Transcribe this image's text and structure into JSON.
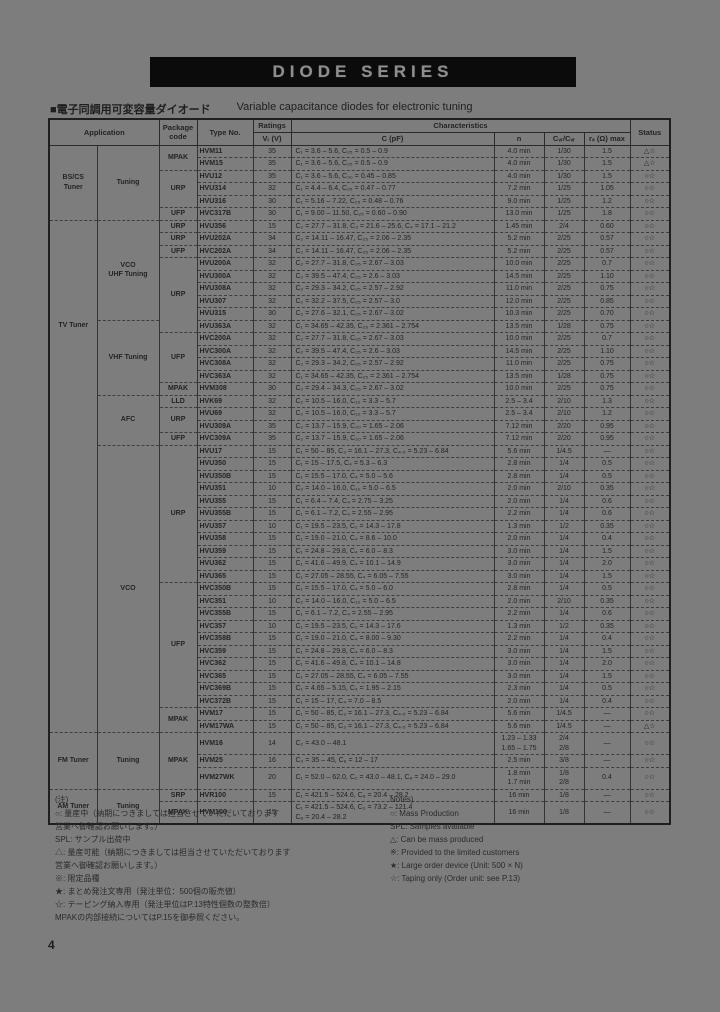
{
  "banner": {
    "title": "DIODE  SERIES"
  },
  "heading": {
    "jp": "■電子同調用可変容量ダイオード",
    "en": "Variable capacitance diodes for electronic tuning"
  },
  "table": {
    "header": {
      "application": "Application",
      "package": "Package\ncode",
      "type_no": "Type No.",
      "ratings": "Ratings",
      "vr": "Vᵣ (V)",
      "characteristics": "Characteristics",
      "c": "C (pF)",
      "n": "n",
      "cvr": "Cᵥᵣ/Cᵥᵣ",
      "rs": "rₛ (Ω) max",
      "status": "Status"
    },
    "rows": [
      [
        {
          "t": "BS/CS\nTuner",
          "s": 6
        },
        {
          "t": "Tuning",
          "s": 6
        },
        {
          "t": "MPAK",
          "s": 2
        },
        "HVM11",
        "35",
        "C₁ = 3.6 – 5.6, C₂₅ = 0.5 – 0.9",
        "4.0 min",
        "1/30",
        "1.5",
        "△☆"
      ],
      [
        null,
        null,
        null,
        "HVM15",
        "35",
        "C₁ = 3.6 – 5.6, C₂₅ = 0.5 – 0.9",
        "4.0 min",
        "1/30",
        "1.5",
        "△☆"
      ],
      [
        null,
        null,
        {
          "t": "URP",
          "s": 3
        },
        "HVU12",
        "35",
        "C₁ = 3.6 – 5.6, C₃₀ = 0.45 – 0.85",
        "4.0 min",
        "1/30",
        "1.5",
        "○☆"
      ],
      [
        null,
        null,
        null,
        "HVU314",
        "32",
        "C₁ = 4.4 – 6.4, C₂₅ = 0.47 – 0.77",
        "7.2 min",
        "1/25",
        "1.05",
        "○☆"
      ],
      [
        null,
        null,
        null,
        "HVU316",
        "30",
        "C₁ = 5.16 – 7.22, C₂₅ = 0.48 – 0.76",
        "9.0 min",
        "1/25",
        "1.2",
        "○☆"
      ],
      [
        null,
        null,
        "UFP",
        "HVC317B",
        "30",
        "C₁ = 9.00 – 11.50, C₂₅ = 0.60 – 0.90",
        "13.0 min",
        "1/25",
        "1.8",
        "○☆"
      ],
      [
        {
          "t": "TV Tuner",
          "s": 41,
          "top": true
        },
        {
          "t": "VCO\nUHF Tuning",
          "s": 8
        },
        "URP",
        "HVU356",
        "15",
        "C₂ = 27.7 – 31.8, C₃ = 21.6 – 25.6, C₄ = 17.1 – 21.2",
        "1.45 min",
        "2/4",
        "0.60",
        "○☆"
      ],
      [
        null,
        null,
        "URP",
        "HVU202A",
        "34",
        "C₂ = 14.11 – 16.47, C₂₅ = 2.06 – 2.35",
        "5.2 min",
        "2/25",
        "0.57",
        "○☆"
      ],
      [
        null,
        null,
        "UFP",
        "HVC202A",
        "34",
        "C₂ = 14.11 – 16.47, C₂₅ = 2.06 – 2.35",
        "5.2 min",
        "2/25",
        "0.57",
        "○☆"
      ],
      [
        null,
        null,
        {
          "t": "URP",
          "s": 6
        },
        "HVU200A",
        "32",
        "C₂ = 27.7 – 31.8, C₂₅ = 2.67 – 3.03",
        "10.0 min",
        "2/25",
        "0.7",
        "○☆"
      ],
      [
        null,
        null,
        null,
        "HVU300A",
        "32",
        "C₂ = 39.5 – 47.4, C₂₅ = 2.6 – 3.03",
        "14.5 min",
        "2/25",
        "1.10",
        "○☆"
      ],
      [
        null,
        null,
        null,
        "HVU308A",
        "32",
        "C₂ = 29.3 – 34.2, C₂₅ = 2.57 – 2.92",
        "11.0 min",
        "2/25",
        "0.75",
        "○☆"
      ],
      [
        null,
        null,
        null,
        "HVU307",
        "32",
        "C₂ = 32.2 – 37.5, C₂₅ = 2.57 – 3.0",
        "12.0 min",
        "2/25",
        "0.85",
        "○☆"
      ],
      [
        null,
        null,
        null,
        "HVU315",
        "30",
        "C₂ = 27.6 – 32.1, C₂₅ = 2.67 – 3.02",
        "10.3 min",
        "2/25",
        "0.70",
        "○☆"
      ],
      [
        null,
        {
          "t": "VHF Tuning",
          "s": 6
        },
        null,
        "HVU363A",
        "32",
        "C₁ = 34.65 – 42.35, C₂₅ = 2.361 – 2.754",
        "13.5 min",
        "1/28",
        "0.75",
        "○☆"
      ],
      [
        null,
        null,
        {
          "t": "UFP",
          "s": 4
        },
        "HVC200A",
        "32",
        "C₂ = 27.7 – 31.8, C₂₅ = 2.67 – 3.03",
        "10.0 min",
        "2/25",
        "0.7",
        "○☆"
      ],
      [
        null,
        null,
        null,
        "HVC300A",
        "32",
        "C₂ = 39.5 – 47.4, C₂₅ = 2.6 – 3.03",
        "14.5 min",
        "2/25",
        "1.10",
        "○☆"
      ],
      [
        null,
        null,
        null,
        "HVC308A",
        "32",
        "C₂ = 29.3 – 34.2, C₂₅ = 2.57 – 2.92",
        "11.0 min",
        "2/25",
        "0.75",
        "○☆"
      ],
      [
        null,
        null,
        null,
        "HVC363A",
        "32",
        "C₁ = 34.65 – 42.35, C₂₅ = 2.361 – 2.754",
        "13.5 min",
        "1/28",
        "0.75",
        "○☆"
      ],
      [
        null,
        null,
        "MPAK",
        "HVM308",
        "30",
        "C₂ = 29.4 – 34.3, C₂₅ = 2.67 – 3.02",
        "10.0 min",
        "2/25",
        "0.75",
        "○☆"
      ],
      [
        null,
        {
          "t": "AFC",
          "s": 4
        },
        "LLD",
        "HVK69",
        "32",
        "C₂ = 10.5 – 16.0, C₁₀ = 3.3 – 5.7",
        "2.5 – 3.4",
        "2/10",
        "1.3",
        "○☆"
      ],
      [
        null,
        null,
        {
          "t": "URP",
          "s": 2
        },
        "HVU69",
        "32",
        "C₂ = 10.5 – 16.0, C₁₀ = 3.3 – 5.7",
        "2.5 – 3.4",
        "2/10",
        "1.2",
        "○☆"
      ],
      [
        null,
        null,
        null,
        "HVU309A",
        "35",
        "C₂ = 13.7 – 15.9, C₂₀ = 1.65 – 2.06",
        "7.12 min",
        "2/20",
        "0.95",
        "○☆"
      ],
      [
        null,
        null,
        "UFP",
        "HVC309A",
        "35",
        "C₂ = 13.7 – 15.9, C₂₀ = 1.65 – 2.06",
        "7.12 min",
        "2/20",
        "0.95",
        "○☆"
      ],
      [
        null,
        {
          "t": "VCO",
          "s": 23
        },
        {
          "t": "URP",
          "s": 11
        },
        "HVU17",
        "15",
        "C₁ = 50 – 85, C₃ = 16.1 – 27.3, C₄.₅ = 5.23 – 6.84",
        "5.6 min",
        "1/4.5",
        "—",
        "○☆"
      ],
      [
        null,
        null,
        null,
        "HVU350",
        "15",
        "C₁ = 15 – 17.5, C₄ = 5.3 – 6.3",
        "2.8 min",
        "1/4",
        "0.5",
        "○☆"
      ],
      [
        null,
        null,
        null,
        "HVU350B",
        "15",
        "C₁ = 15.5 – 17.0, C₄ = 5.0 – 5.6",
        "2.8 min",
        "1/4",
        "0.5",
        "○☆"
      ],
      [
        null,
        null,
        null,
        "HVU351",
        "10",
        "C₂ = 14.0 – 16.0, C₁₀ = 5.0 – 6.5",
        "2.0 min",
        "2/10",
        "0.35",
        "○☆"
      ],
      [
        null,
        null,
        null,
        "HVU355",
        "15",
        "C₁ = 6.4 – 7.4, C₄ = 2.75 – 3.25",
        "2.0 min",
        "1/4",
        "0.6",
        "○☆"
      ],
      [
        null,
        null,
        null,
        "HVU355B",
        "15",
        "C₁ = 6.1 – 7.2, C₄ = 2.55 – 2.95",
        "2.2 min",
        "1/4",
        "0.6",
        "○☆"
      ],
      [
        null,
        null,
        null,
        "HVU357",
        "10",
        "C₁ = 19.5 – 23.5, C₂ = 14.3 – 17.8",
        "1.3 min",
        "1/2",
        "0.35",
        "○☆"
      ],
      [
        null,
        null,
        null,
        "HVU358",
        "15",
        "C₁ = 19.0 – 21.0, C₄ = 8.6 – 10.0",
        "2.0 min",
        "1/4",
        "0.4",
        "○☆"
      ],
      [
        null,
        null,
        null,
        "HVU359",
        "15",
        "C₁ = 24.8 – 29.8, C₄ = 6.0 – 8.3",
        "3.0 min",
        "1/4",
        "1.5",
        "○☆"
      ],
      [
        null,
        null,
        null,
        "HVU362",
        "15",
        "C₁ = 41.6 – 49.9, C₄ = 10.1 – 14.9",
        "3.0 min",
        "1/4",
        "2.0",
        "○☆"
      ],
      [
        null,
        null,
        null,
        "HVU365",
        "15",
        "C₁ = 27.05 – 28.55, C₄ = 6.05 – 7.55",
        "3.0 min",
        "1/4",
        "1.5",
        "○☆"
      ],
      [
        null,
        null,
        {
          "t": "UFP",
          "s": 10
        },
        "HVC350B",
        "15",
        "C₁ = 15.5 – 17.0, C₄ = 5.0 – 6.0",
        "2.8 min",
        "1/4",
        "0.5",
        "○☆"
      ],
      [
        null,
        null,
        null,
        "HVC351",
        "10",
        "C₂ = 14.0 – 16.0, C₁₀ = 5.0 – 6.5",
        "2.0 min",
        "2/10",
        "0.35",
        "○☆"
      ],
      [
        null,
        null,
        null,
        "HVC355B",
        "15",
        "C₁ = 6.1 – 7.2, C₄ = 2.55 – 2.95",
        "2.2 min",
        "1/4",
        "0.6",
        "○☆"
      ],
      [
        null,
        null,
        null,
        "HVC357",
        "10",
        "C₁ = 19.5 – 23.5, C₂ = 14.3 – 17.6",
        "1.3 min",
        "1/2",
        "0.35",
        "○☆"
      ],
      [
        null,
        null,
        null,
        "HVC358B",
        "15",
        "C₁ = 19.0 – 21.0, C₄ = 8.00 – 9.30",
        "2.2 min",
        "1/4",
        "0.4",
        "○☆"
      ],
      [
        null,
        null,
        null,
        "HVC359",
        "15",
        "C₁ = 24.8 – 29.8, C₄ = 6.0 – 8.3",
        "3.0 min",
        "1/4",
        "1.5",
        "○☆"
      ],
      [
        null,
        null,
        null,
        "HVC362",
        "15",
        "C₁ = 41.6 – 49.8, C₄ = 10.1 – 14.8",
        "3.0 min",
        "1/4",
        "2.0",
        "○☆"
      ],
      [
        null,
        null,
        null,
        "HVC365",
        "15",
        "C₁ = 27.05 – 28.55, C₄ = 6.05 – 7.55",
        "3.0 min",
        "1/4",
        "1.5",
        "○☆"
      ],
      [
        null,
        null,
        null,
        "HVC369B",
        "15",
        "C₁ = 4.65 – 5.15, C₄ = 1.95 – 2.15",
        "2.3 min",
        "1/4",
        "0.5",
        "○☆"
      ],
      [
        null,
        null,
        null,
        "HVC372B",
        "15",
        "C₁ = 15 – 17, C₄ = 7.0 – 8.5",
        "2.0 min",
        "1/4",
        "0.4",
        "○☆"
      ],
      [
        null,
        null,
        {
          "t": "MPAK",
          "s": 2
        },
        "HVM17",
        "15",
        "C₁ = 50 – 85, C₃ = 16.1 – 27.3, C₄.₅ = 5.23 – 6.84",
        "5.6 min",
        "1/4.5",
        "—",
        "○☆"
      ],
      [
        null,
        null,
        null,
        "HVM17WA",
        "15",
        "C₁ = 50 – 85, C₃ = 16.1 – 27.3, C₄.₅ = 5.23 – 6.84",
        "5.6 min",
        "1/4.5",
        "—",
        "△☆"
      ],
      [
        {
          "t": "FM Tuner",
          "s": 3
        },
        {
          "t": "Tuning",
          "s": 3
        },
        {
          "t": "MPAK",
          "s": 3
        },
        "HVM16",
        "14",
        "C₂ = 43.0 – 48.1",
        "1.23 – 1.33\n1.65 – 1.75",
        "2/4\n2/8",
        "—",
        "○☆"
      ],
      [
        null,
        null,
        null,
        "HVM25",
        "16",
        "C₃ = 35 – 45, C₈ = 12 – 17",
        "2.5 min",
        "3/8",
        "—",
        "○☆"
      ],
      [
        null,
        null,
        null,
        "HVM27WK",
        "20",
        "C₁ = 52.0 – 62.0, C₂ = 43.0 – 48.1, C₈ = 24.0 – 29.0",
        "1.8 min\n1.7 min",
        "1/8\n2/8",
        "0.4",
        "○☆"
      ],
      [
        {
          "t": "AM Tuner",
          "s": 2
        },
        {
          "t": "Tuning",
          "s": 2
        },
        "SRP",
        "HVR100",
        "15",
        "C₁ = 421.5 – 524.6, C₈ = 20.4 – 28.2",
        "16 min",
        "1/8",
        "—",
        "○☆"
      ],
      [
        null,
        null,
        "MPAK",
        "HVM100",
        "15",
        "C₁ = 421.5 – 524.6, C₃ = 73.2 – 121.4\nC₈ = 20.4 – 28.2",
        "16 min",
        "1/8",
        "—",
        "○☆"
      ]
    ]
  },
  "notes_left": {
    "title": "(注)",
    "lines": [
      "○: 量産中（納期につきましては担当させていただいております",
      "営業へ御確認お願いします。）",
      "SPL: サンプル出荷中",
      "△: 量産可能（納期につきましては担当させていただいております",
      "営業へ御確認お願いします。）",
      "※: 限定品種",
      "★: まとめ発注文専用（発注単位：500個の販売値）",
      "☆: テーピング納入専用（発注単位はP.13特性個数の整数倍）",
      "MPAKの内部接続についてはP.15を御参照ください。"
    ]
  },
  "notes_right": {
    "title": "Notes)",
    "lines": [
      "○: Mass Production",
      "SPL: Samples available",
      "△: Can be mass produced",
      "※: Provided to the limited customers",
      "★: Large order device (Unit: 500 × N)",
      "☆: Taping only (Order unit: see P.13)"
    ]
  },
  "page": {
    "number": "4"
  }
}
